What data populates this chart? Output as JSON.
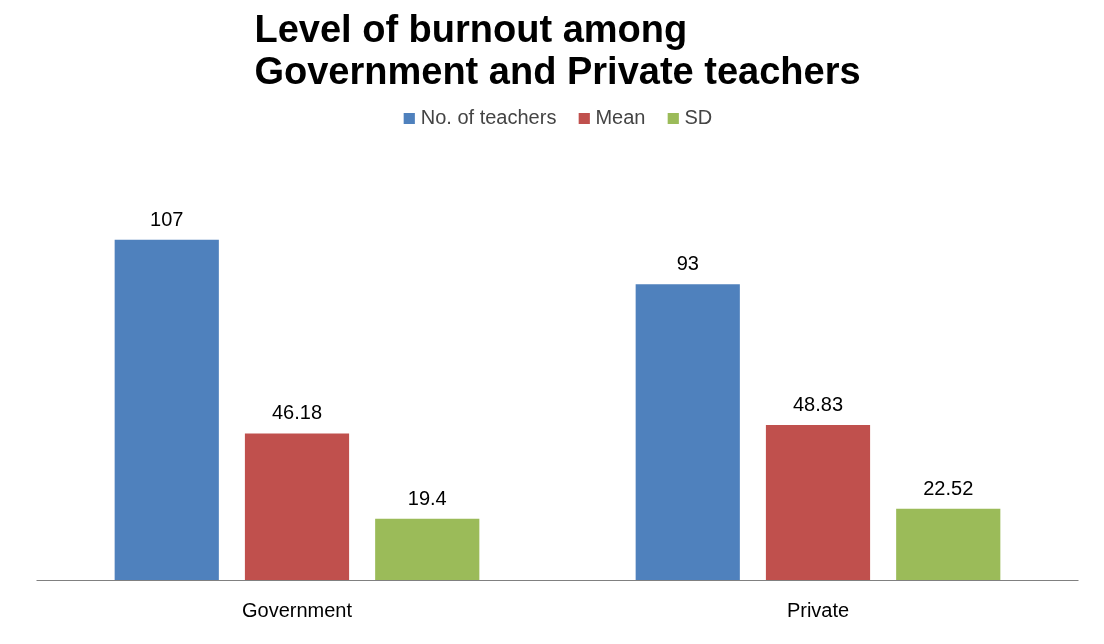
{
  "chart_data": {
    "type": "bar",
    "title": "Level of burnout among Government and Private teachers",
    "categories": [
      "Government",
      "Private"
    ],
    "series": [
      {
        "name": "No. of teachers",
        "color": "#4f81bd",
        "values": [
          107,
          93
        ]
      },
      {
        "name": "Mean",
        "color": "#c0504d",
        "values": [
          46.18,
          48.83
        ]
      },
      {
        "name": "SD",
        "color": "#9bbb59",
        "values": [
          19.4,
          22.52
        ]
      }
    ],
    "data_labels": true,
    "legend": "top"
  }
}
